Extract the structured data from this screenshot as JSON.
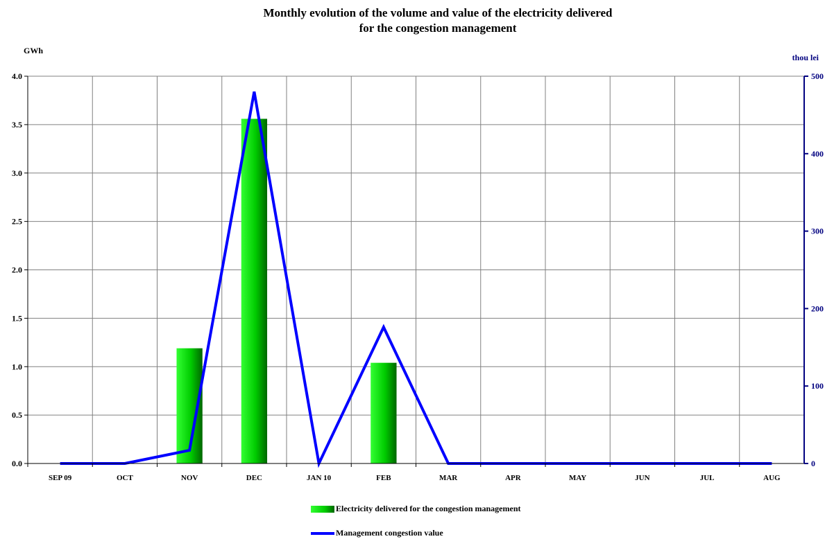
{
  "chart_data": {
    "type": "bar",
    "title_line1": "Monthly evolution of the volume and value of the electricity delivered",
    "title_line2": "for the congestion management",
    "ylabel_left": "GWh",
    "ylabel_right": "thou lei",
    "categories": [
      "SEP 09",
      "OCT",
      "NOV",
      "DEC",
      "JAN 10",
      "FEB",
      "MAR",
      "APR",
      "MAY",
      "JUN",
      "JUL",
      "AUG"
    ],
    "ylim_left": [
      0,
      4.0
    ],
    "ylim_right": [
      0,
      500
    ],
    "yticks_left": [
      "0.0",
      "0.5",
      "1.0",
      "1.5",
      "2.0",
      "2.5",
      "3.0",
      "3.5",
      "4.0"
    ],
    "yticks_right": [
      "0",
      "100",
      "200",
      "300",
      "400",
      "500"
    ],
    "grid": true,
    "legend_position": "bottom-center",
    "series": [
      {
        "name": "Electricity delivered for the congestion management",
        "type": "bar",
        "axis": "left",
        "values": [
          0,
          0,
          1.19,
          3.56,
          0,
          1.04,
          0,
          0,
          0,
          0,
          0,
          0
        ],
        "color": "#00cc00"
      },
      {
        "name": "Management congestion value",
        "type": "line",
        "axis": "right",
        "values": [
          0,
          0,
          17,
          480,
          0,
          176,
          0,
          0,
          0,
          0,
          0,
          0
        ],
        "color": "#0000ff"
      }
    ]
  }
}
